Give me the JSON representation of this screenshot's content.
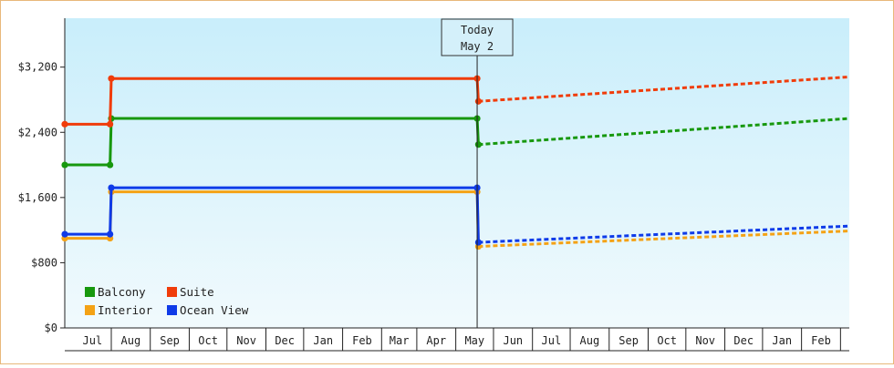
{
  "chart_data": {
    "type": "line",
    "title": "",
    "xlabel": "",
    "ylabel": "",
    "ylim": [
      0,
      3800
    ],
    "y_ticks": [
      {
        "value": 0,
        "label": "$0"
      },
      {
        "value": 800,
        "label": "$800"
      },
      {
        "value": 1600,
        "label": "$1,600"
      },
      {
        "value": 2400,
        "label": "$2,400"
      },
      {
        "value": 3200,
        "label": "$3,200"
      }
    ],
    "x_range": [
      "2025-06-01",
      "2026-02-28"
    ],
    "x_ticks": [
      {
        "start": "2025-06-15",
        "end": "2025-07-15",
        "label": "Jul"
      },
      {
        "start": "2025-07-15",
        "end": "2025-08-15",
        "label": "Aug"
      },
      {
        "start": "2025-08-15",
        "end": "2025-09-15",
        "label": "Sep"
      },
      {
        "start": "2025-09-15",
        "end": "2025-10-15",
        "label": "Oct"
      },
      {
        "start": "2025-10-15",
        "end": "2025-11-15",
        "label": "Nov"
      },
      {
        "start": "2025-11-15",
        "end": "2025-12-15",
        "label": "Dec"
      },
      {
        "start": "2025-12-15",
        "end": "2026-01-15",
        "label": "Jan"
      },
      {
        "start": "2026-01-15",
        "end": "2026-02-15",
        "label": "Feb"
      },
      {
        "start": "2026-02-15",
        "end": "2026-03-15",
        "label": "Mar"
      },
      {
        "start": "2026-03-15",
        "end": "2026-04-15",
        "label": "Apr"
      },
      {
        "start": "2026-04-15",
        "end": "2026-05-15",
        "label": "May"
      },
      {
        "start": "2026-05-15",
        "end": "2026-06-15",
        "label": "Jun"
      },
      {
        "start": "2026-06-15",
        "end": "2026-07-15",
        "label": "Jul"
      },
      {
        "start": "2026-07-15",
        "end": "2026-08-15",
        "label": "Aug"
      },
      {
        "start": "2026-08-15",
        "end": "2026-09-15",
        "label": "Sep"
      },
      {
        "start": "2026-09-15",
        "end": "2026-10-15",
        "label": "Oct"
      },
      {
        "start": "2026-10-15",
        "end": "2026-11-15",
        "label": "Nov"
      },
      {
        "start": "2026-11-15",
        "end": "2026-12-15",
        "label": "Dec"
      },
      {
        "start": "2026-12-15",
        "end": "2027-01-15",
        "label": "Jan"
      },
      {
        "start": "2027-01-15",
        "end": "2027-02-15",
        "label": "Feb"
      }
    ],
    "x_domain": [
      "2025-06-08",
      "2027-02-22"
    ],
    "today": {
      "label_line1": "Today",
      "label_line2": "May 2",
      "date": "2026-05-02"
    },
    "grid": false,
    "legend_position": "bottom-left",
    "series": [
      {
        "name": "Balcony",
        "color": "#17980e",
        "history": [
          [
            "2025-06-08",
            2000
          ],
          [
            "2025-07-14",
            2000
          ],
          [
            "2025-07-15",
            2570
          ],
          [
            "2026-05-02",
            2570
          ],
          [
            "2026-05-03",
            2250
          ]
        ],
        "forecast": [
          [
            "2026-05-03",
            2250
          ],
          [
            "2027-02-22",
            2570
          ]
        ]
      },
      {
        "name": "Suite",
        "color": "#f03c0a",
        "history": [
          [
            "2025-06-08",
            2500
          ],
          [
            "2025-07-14",
            2500
          ],
          [
            "2025-07-15",
            3060
          ],
          [
            "2026-05-02",
            3060
          ],
          [
            "2026-05-03",
            2780
          ]
        ],
        "forecast": [
          [
            "2026-05-03",
            2780
          ],
          [
            "2027-02-22",
            3080
          ]
        ]
      },
      {
        "name": "Interior",
        "color": "#f4a215",
        "history": [
          [
            "2025-06-08",
            1100
          ],
          [
            "2025-07-14",
            1100
          ],
          [
            "2025-07-15",
            1670
          ],
          [
            "2026-05-02",
            1670
          ],
          [
            "2026-05-03",
            1000
          ]
        ],
        "forecast": [
          [
            "2026-05-03",
            1000
          ],
          [
            "2027-02-22",
            1190
          ]
        ]
      },
      {
        "name": "Ocean View",
        "color": "#0f3be8",
        "history": [
          [
            "2025-06-08",
            1150
          ],
          [
            "2025-07-14",
            1150
          ],
          [
            "2025-07-15",
            1720
          ],
          [
            "2026-05-02",
            1720
          ],
          [
            "2026-05-03",
            1050
          ]
        ],
        "forecast": [
          [
            "2026-05-03",
            1050
          ],
          [
            "2027-02-22",
            1250
          ]
        ]
      }
    ]
  }
}
